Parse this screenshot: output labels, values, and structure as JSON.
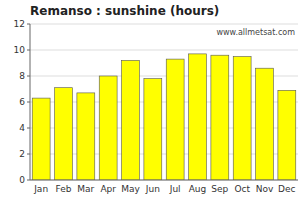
{
  "chart_data": {
    "type": "bar",
    "title": "Remanso : sunshine (hours)",
    "categories": [
      "Jan",
      "Feb",
      "Mar",
      "Apr",
      "May",
      "Jun",
      "Jul",
      "Aug",
      "Sep",
      "Oct",
      "Nov",
      "Dec"
    ],
    "values": [
      6.3,
      7.1,
      6.7,
      8.0,
      9.2,
      7.8,
      9.3,
      9.7,
      9.6,
      9.5,
      8.6,
      6.9
    ],
    "color": "#ffff00",
    "ylim": [
      0,
      12
    ],
    "yticks": [
      0,
      2,
      4,
      6,
      8,
      10,
      12
    ],
    "grid": true,
    "annotations": [
      "www.allmetsat.com"
    ]
  }
}
